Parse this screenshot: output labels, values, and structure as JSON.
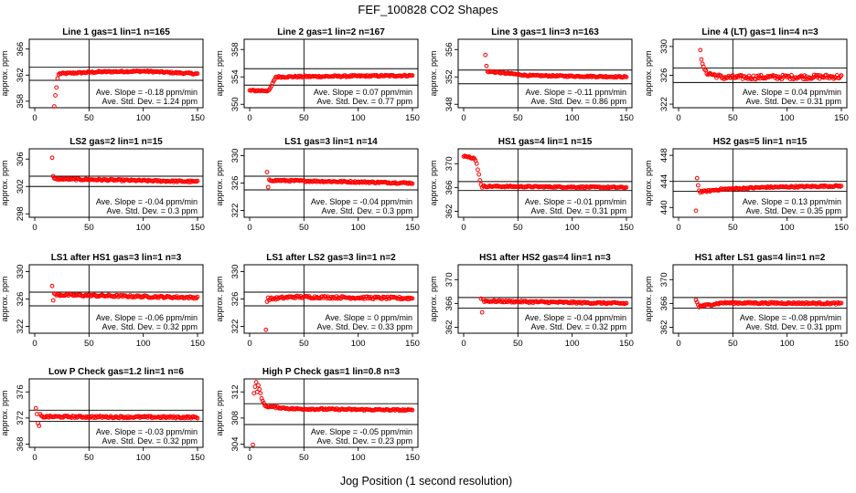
{
  "figure": {
    "title": "FEF_100828  CO2 Shapes",
    "xlabel": "Jog Position (1 second resolution)",
    "ylabel": "approx. ppm",
    "point_color": "#ff0000",
    "stat_slope_prefix": "Ave. Slope =",
    "stat_slope_unit": "ppm/min",
    "stat_std_prefix": "Ave. Std. Dev. =",
    "stat_std_unit": "ppm"
  },
  "chart_data": [
    {
      "type": "scatter",
      "title": "Line 1 gas=1 lin=1 n=165",
      "xlim": [
        0,
        150
      ],
      "ylim": [
        357,
        367.5
      ],
      "xticks": [
        0,
        50,
        100,
        150
      ],
      "yticks": [
        358,
        362,
        366
      ],
      "hlines": [
        363.2,
        361.2
      ],
      "vline": 50,
      "slope": "-0.18",
      "std": "1.24",
      "shape": {
        "start": 18,
        "start_y": [
          357.2,
          358.9,
          360.1,
          361.5,
          362.1
        ],
        "base": 362.3,
        "jitter": 0.12,
        "drift": [
          [
            20,
            362.2
          ],
          [
            60,
            362.5
          ],
          [
            100,
            362.6
          ],
          [
            150,
            362.2
          ]
        ]
      }
    },
    {
      "type": "scatter",
      "title": "Line 2 gas=1 lin=2 n=167",
      "xlim": [
        0,
        150
      ],
      "ylim": [
        349.5,
        359.5
      ],
      "xticks": [
        0,
        50,
        100,
        150
      ],
      "yticks": [
        350,
        354,
        358
      ],
      "hlines": [
        355.2,
        352.8
      ],
      "vline": 50,
      "slope": "0.07",
      "std": "0.77",
      "shape": {
        "start": 0,
        "start_y": [],
        "base": 354.2,
        "jitter": 0.12,
        "drift": [
          [
            0,
            352
          ],
          [
            18,
            352
          ],
          [
            24,
            354
          ],
          [
            150,
            354.2
          ]
        ]
      }
    },
    {
      "type": "scatter",
      "title": "Line 3 gas=1 lin=3 n=163",
      "xlim": [
        0,
        150
      ],
      "ylim": [
        347.5,
        357.5
      ],
      "xticks": [
        0,
        50,
        100,
        150
      ],
      "yticks": [
        348,
        352,
        356
      ],
      "hlines": [
        353,
        351
      ],
      "vline": 50,
      "slope": "-0.11",
      "std": "0.86",
      "shape": {
        "start": 20,
        "start_y": [
          355.2,
          353.6,
          352.8
        ],
        "base": 352.2,
        "jitter": 0.1,
        "drift": [
          [
            22,
            352.8
          ],
          [
            60,
            352.2
          ],
          [
            150,
            352
          ]
        ]
      }
    },
    {
      "type": "scatter",
      "title": "Line 4 (LT) gas=1 lin=4 n=3",
      "xlim": [
        0,
        150
      ],
      "ylim": [
        321.5,
        331
      ],
      "xticks": [
        0,
        50,
        100,
        150
      ],
      "yticks": [
        322,
        326,
        330
      ],
      "hlines": [
        327,
        325
      ],
      "vline": 50,
      "slope": "0.04",
      "std": "0.31",
      "shape": {
        "start": 20,
        "start_y": [
          329.5,
          328.2,
          327.6,
          327.2,
          326.8
        ],
        "base": 325.9,
        "jitter": 0.3,
        "drift": [
          [
            25,
            326.4
          ],
          [
            40,
            325.7
          ],
          [
            150,
            325.8
          ]
        ]
      }
    },
    {
      "type": "scatter",
      "title": "LS2 gas=2 lin=1 n=15",
      "xlim": [
        0,
        150
      ],
      "ylim": [
        297.5,
        307.5
      ],
      "xticks": [
        0,
        50,
        100,
        150
      ],
      "yticks": [
        298,
        302,
        306
      ],
      "hlines": [
        303.5,
        302
      ],
      "vline": 50,
      "slope": "-0.04",
      "std": "0.3",
      "shape": {
        "start": 16,
        "start_y": [
          306.2,
          303.5
        ],
        "base": 302.8,
        "jitter": 0.12,
        "drift": [
          [
            18,
            303.1
          ],
          [
            150,
            302.7
          ]
        ]
      }
    },
    {
      "type": "scatter",
      "title": "LS1 gas=3 lin=1 n=14",
      "xlim": [
        0,
        150
      ],
      "ylim": [
        321,
        331
      ],
      "xticks": [
        0,
        50,
        100,
        150
      ],
      "yticks": [
        322,
        326,
        330
      ],
      "hlines": [
        327,
        325
      ],
      "vline": 50,
      "slope": "-0.04",
      "std": "0.3",
      "shape": {
        "start": 16,
        "start_y": [
          327.6,
          325.4
        ],
        "base": 326.1,
        "jitter": 0.12,
        "drift": [
          [
            18,
            326.4
          ],
          [
            150,
            326
          ]
        ]
      }
    },
    {
      "type": "scatter",
      "title": "HS1 gas=4 lin=1 n=15",
      "xlim": [
        0,
        150
      ],
      "ylim": [
        361,
        372.5
      ],
      "xticks": [
        0,
        50,
        100,
        150
      ],
      "yticks": [
        362,
        366,
        370
      ],
      "hlines": [
        367,
        365.5
      ],
      "vline": 50,
      "slope": "-0.01",
      "std": "0.31",
      "shape": {
        "start": 0,
        "start_y": [
          371.2,
          371.3,
          371.2,
          371.2,
          371.1,
          371.2,
          371,
          370.9,
          370.9,
          371,
          370.8,
          370.5,
          370,
          369,
          368.2,
          367.2,
          366.5,
          366
        ],
        "base": 366,
        "jitter": 0.12,
        "drift": [
          [
            18,
            366.2
          ],
          [
            150,
            366
          ]
        ]
      }
    },
    {
      "type": "scatter",
      "title": "HS2 gas=5 lin=1 n=15",
      "xlim": [
        0,
        150
      ],
      "ylim": [
        438.5,
        449
      ],
      "xticks": [
        0,
        50,
        100,
        150
      ],
      "yticks": [
        440,
        444,
        448
      ],
      "hlines": [
        444,
        442.5
      ],
      "vline": 50,
      "slope": "0.13",
      "std": "0.35",
      "shape": {
        "start": 16,
        "start_y": [
          439.5,
          444.5,
          443.4,
          442.6
        ],
        "base": 443,
        "jitter": 0.12,
        "drift": [
          [
            20,
            442.4
          ],
          [
            40,
            442.8
          ],
          [
            80,
            443.1
          ],
          [
            150,
            443.3
          ]
        ]
      }
    },
    {
      "type": "scatter",
      "title": "LS1 after HS1 gas=3 lin=1 n=3",
      "xlim": [
        0,
        150
      ],
      "ylim": [
        321,
        331
      ],
      "xticks": [
        0,
        50,
        100,
        150
      ],
      "yticks": [
        322,
        326,
        330
      ],
      "hlines": [
        327,
        325
      ],
      "vline": 50,
      "slope": "-0.06",
      "std": "0.32",
      "shape": {
        "start": 16,
        "start_y": [
          327.9,
          325.8,
          326.8
        ],
        "base": 326.3,
        "jitter": 0.15,
        "drift": [
          [
            20,
            326.6
          ],
          [
            150,
            326.2
          ]
        ]
      }
    },
    {
      "type": "scatter",
      "title": "LS1 after LS2 gas=3 lin=1 n=2",
      "xlim": [
        0,
        150
      ],
      "ylim": [
        321,
        331
      ],
      "xticks": [
        0,
        50,
        100,
        150
      ],
      "yticks": [
        322,
        326,
        330
      ],
      "hlines": [
        327,
        325
      ],
      "vline": 50,
      "slope": "0",
      "std": "0.33",
      "shape": {
        "start": 15,
        "start_y": [
          321.5,
          325.6,
          326.2
        ],
        "base": 326.1,
        "jitter": 0.18,
        "drift": [
          [
            18,
            326
          ],
          [
            40,
            326.3
          ],
          [
            150,
            326.1
          ]
        ]
      }
    },
    {
      "type": "scatter",
      "title": "HS1 after HS2 gas=4 lin=1 n=3",
      "xlim": [
        0,
        150
      ],
      "ylim": [
        361,
        372.5
      ],
      "xticks": [
        0,
        50,
        100,
        150
      ],
      "yticks": [
        362,
        366,
        370
      ],
      "hlines": [
        367,
        365.2
      ],
      "vline": 50,
      "slope": "-0.04",
      "std": "0.32",
      "shape": {
        "start": 16,
        "start_y": [
          366.8,
          364.5,
          366.7
        ],
        "base": 366,
        "jitter": 0.15,
        "drift": [
          [
            20,
            366.4
          ],
          [
            150,
            366
          ]
        ]
      }
    },
    {
      "type": "scatter",
      "title": "HS1 after LS1 gas=4 lin=1 n=2",
      "xlim": [
        0,
        150
      ],
      "ylim": [
        361,
        372.5
      ],
      "xticks": [
        0,
        50,
        100,
        150
      ],
      "yticks": [
        362,
        366,
        370
      ],
      "hlines": [
        367,
        365.2
      ],
      "vline": 50,
      "slope": "-0.08",
      "std": "0.31",
      "shape": {
        "start": 16,
        "start_y": [
          366.6,
          366.2,
          365.8,
          365.4
        ],
        "base": 366,
        "jitter": 0.15,
        "drift": [
          [
            22,
            365.6
          ],
          [
            40,
            366.1
          ],
          [
            150,
            366
          ]
        ]
      }
    },
    {
      "type": "scatter",
      "title": "Low P Check gas=1.2 lin=1 n=6",
      "xlim": [
        0,
        150
      ],
      "ylim": [
        367.5,
        378
      ],
      "xticks": [
        0,
        50,
        100,
        150
      ],
      "yticks": [
        368,
        372,
        376
      ],
      "hlines": [
        373.2,
        371.5
      ],
      "vline": 50,
      "slope": "-0.03",
      "std": "0.32",
      "shape": {
        "start": 1,
        "start_y": [
          373.5,
          372.6,
          371.2,
          370.8,
          372.6
        ],
        "base": 372.3,
        "jitter": 0.15,
        "drift": [
          [
            6,
            372.2
          ],
          [
            150,
            372.1
          ]
        ]
      }
    },
    {
      "type": "scatter",
      "title": "High P Check gas=1 lin=0.8 n=3",
      "xlim": [
        0,
        150
      ],
      "ylim": [
        303.5,
        314
      ],
      "xticks": [
        0,
        50,
        100,
        150
      ],
      "yticks": [
        304,
        308,
        312
      ],
      "hlines": [
        310.2,
        307
      ],
      "vline": 50,
      "slope": "-0.05",
      "std": "0.23",
      "shape": {
        "start": 3,
        "start_y": [
          303.9,
          311.8,
          312.8,
          313.5,
          312,
          313,
          312.4,
          311.8,
          311,
          310.6,
          310.3
        ],
        "base": 309.5,
        "jitter": 0.12,
        "drift": [
          [
            14,
            309.8
          ],
          [
            40,
            309.4
          ],
          [
            150,
            309.2
          ]
        ]
      }
    }
  ]
}
